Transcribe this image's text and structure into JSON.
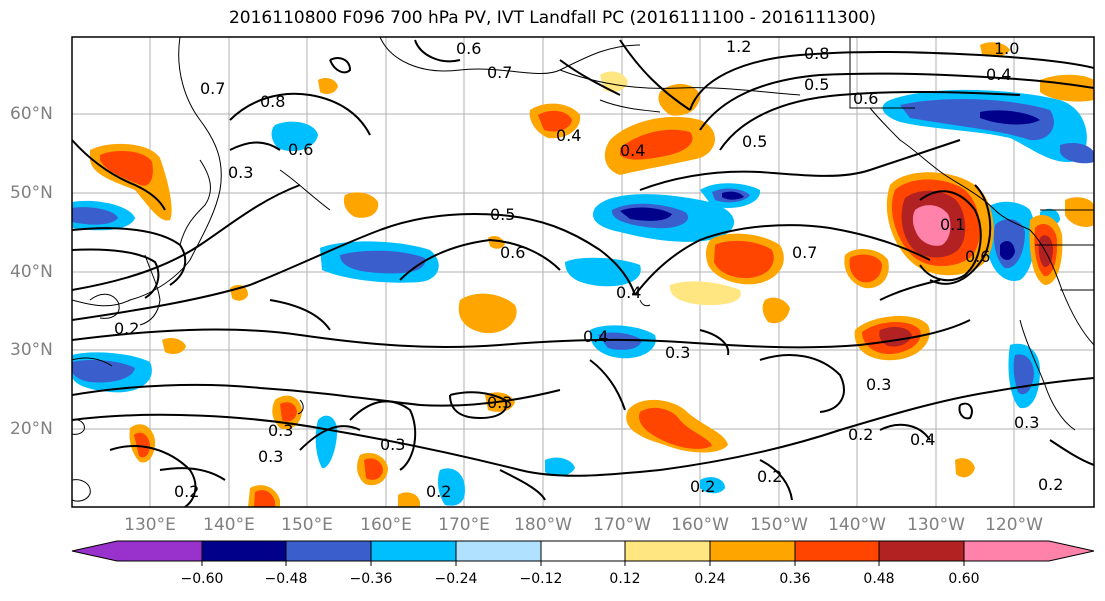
{
  "title": "2016110800 F096 700 hPa PV, IVT Landfall PC (2016111100 - 2016111300)",
  "lat_labels": [
    "60°N",
    "50°N",
    "40°N",
    "30°N",
    "20°N"
  ],
  "lon_labels": [
    "130°E",
    "140°E",
    "150°E",
    "160°E",
    "170°E",
    "180°W",
    "170°W",
    "160°W",
    "150°W",
    "140°W",
    "130°W",
    "120°W"
  ],
  "colorbar": {
    "ticks": [
      "−0.60",
      "−0.48",
      "−0.36",
      "−0.24",
      "−0.12",
      "0.12",
      "0.24",
      "0.36",
      "0.48",
      "0.60"
    ],
    "colors": [
      "#9932cc",
      "#00008b",
      "#3a5fcd",
      "#00bfff",
      "#b0e2ff",
      "#ffffff",
      "#ffe680",
      "#ffa500",
      "#ff4500",
      "#b22222",
      "#ff82ab"
    ]
  },
  "contour_labels": [
    "0.6",
    "0.7",
    "1.2",
    "0.8",
    "1.0",
    "0.4",
    "0.5",
    "0.6",
    "0.7",
    "0.8",
    "0.6",
    "0.4",
    "0.5",
    "0.4",
    "0.5",
    "0.6",
    "0.7",
    "0.4",
    "0.4",
    "0.3",
    "0.3",
    "0.3",
    "0.2",
    "0.3",
    "0.3",
    "0.2",
    "0.2",
    "0.2",
    "0.2",
    "0.4",
    "0.3",
    "0.2",
    "0.3",
    "0.2",
    "0.6",
    "0.1",
    "0.3"
  ]
}
